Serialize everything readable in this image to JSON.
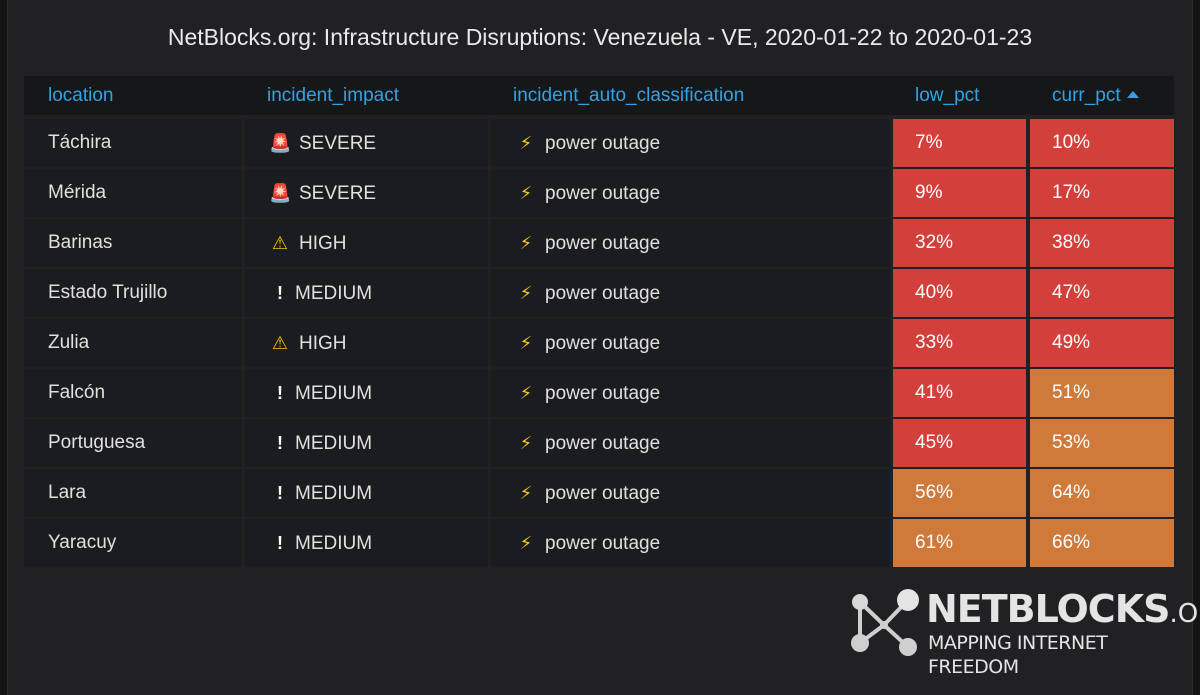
{
  "title": "NetBlocks.org: Infrastructure Disruptions: Venezuela - VE, 2020-01-22 to 2020-01-23",
  "columns": [
    {
      "key": "location",
      "label": "location"
    },
    {
      "key": "incident_impact",
      "label": "incident_impact"
    },
    {
      "key": "incident_auto_classification",
      "label": "incident_auto_classification"
    },
    {
      "key": "low_pct",
      "label": "low_pct"
    },
    {
      "key": "curr_pct",
      "label": "curr_pct"
    }
  ],
  "sort": {
    "column": "curr_pct",
    "direction": "ascending"
  },
  "colors": {
    "red": "#d3403b",
    "orange": "#cf7a3a",
    "header_text": "#33a2e5"
  },
  "rows": [
    {
      "location": "Táchira",
      "impact": "SEVERE",
      "impact_icon": "siren-icon",
      "classification": "power outage",
      "class_icon": "lightning-icon",
      "low_pct": "7%",
      "curr_pct": "10%",
      "low_color": "#d3403b",
      "curr_color": "#d3403b"
    },
    {
      "location": "Mérida",
      "impact": "SEVERE",
      "impact_icon": "siren-icon",
      "classification": "power outage",
      "class_icon": "lightning-icon",
      "low_pct": "9%",
      "curr_pct": "17%",
      "low_color": "#d3403b",
      "curr_color": "#d3403b"
    },
    {
      "location": "Barinas",
      "impact": "HIGH",
      "impact_icon": "warning-icon",
      "classification": "power outage",
      "class_icon": "lightning-icon",
      "low_pct": "32%",
      "curr_pct": "38%",
      "low_color": "#d3403b",
      "curr_color": "#d3403b"
    },
    {
      "location": "Estado Trujillo",
      "impact": "MEDIUM",
      "impact_icon": "exclamation-icon",
      "classification": "power outage",
      "class_icon": "lightning-icon",
      "low_pct": "40%",
      "curr_pct": "47%",
      "low_color": "#d3403b",
      "curr_color": "#d3403b"
    },
    {
      "location": "Zulia",
      "impact": "HIGH",
      "impact_icon": "warning-icon",
      "classification": "power outage",
      "class_icon": "lightning-icon",
      "low_pct": "33%",
      "curr_pct": "49%",
      "low_color": "#d3403b",
      "curr_color": "#d3403b"
    },
    {
      "location": "Falcón",
      "impact": "MEDIUM",
      "impact_icon": "exclamation-icon",
      "classification": "power outage",
      "class_icon": "lightning-icon",
      "low_pct": "41%",
      "curr_pct": "51%",
      "low_color": "#d3403b",
      "curr_color": "#cf7a3a"
    },
    {
      "location": "Portuguesa",
      "impact": "MEDIUM",
      "impact_icon": "exclamation-icon",
      "classification": "power outage",
      "class_icon": "lightning-icon",
      "low_pct": "45%",
      "curr_pct": "53%",
      "low_color": "#d3403b",
      "curr_color": "#cf7a3a"
    },
    {
      "location": "Lara",
      "impact": "MEDIUM",
      "impact_icon": "exclamation-icon",
      "classification": "power outage",
      "class_icon": "lightning-icon",
      "low_pct": "56%",
      "curr_pct": "64%",
      "low_color": "#cf7a3a",
      "curr_color": "#cf7a3a"
    },
    {
      "location": "Yaracuy",
      "impact": "MEDIUM",
      "impact_icon": "exclamation-icon",
      "classification": "power outage",
      "class_icon": "lightning-icon",
      "low_pct": "61%",
      "curr_pct": "66%",
      "low_color": "#cf7a3a",
      "curr_color": "#cf7a3a"
    }
  ],
  "logo": {
    "name": "NETBLOCKS",
    "suffix": ".ORG",
    "tagline": "MAPPING INTERNET FREEDOM",
    "icon": "network-nodes-icon"
  }
}
